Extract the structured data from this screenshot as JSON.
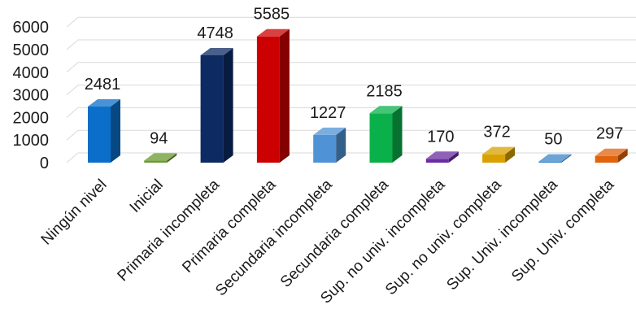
{
  "chart_data": {
    "type": "bar",
    "title": "",
    "xlabel": "",
    "ylabel": "",
    "ylim": [
      0,
      6000
    ],
    "yticks": [
      0,
      1000,
      2000,
      3000,
      4000,
      5000,
      6000
    ],
    "grid": true,
    "legend": "none",
    "categories": [
      "Ningún nivel",
      "Inicial",
      "Primaria incompleta",
      "Primaria completa",
      "Secundaria incompleta",
      "Secundaria completa",
      "Sup. no univ. incompleta",
      "Sup. no univ. completa",
      "Sup. Univ. incompleta",
      "Sup. Univ. completa"
    ],
    "values": [
      2481,
      94,
      4748,
      5585,
      1227,
      2185,
      170,
      372,
      50,
      297
    ],
    "colors": [
      "#0b6fc9",
      "#6a9a2e",
      "#0d2a63",
      "#cc0000",
      "#4f93d6",
      "#0ab04a",
      "#6a2ca0",
      "#d8a100",
      "#3b86c8",
      "#e0630e"
    ]
  }
}
